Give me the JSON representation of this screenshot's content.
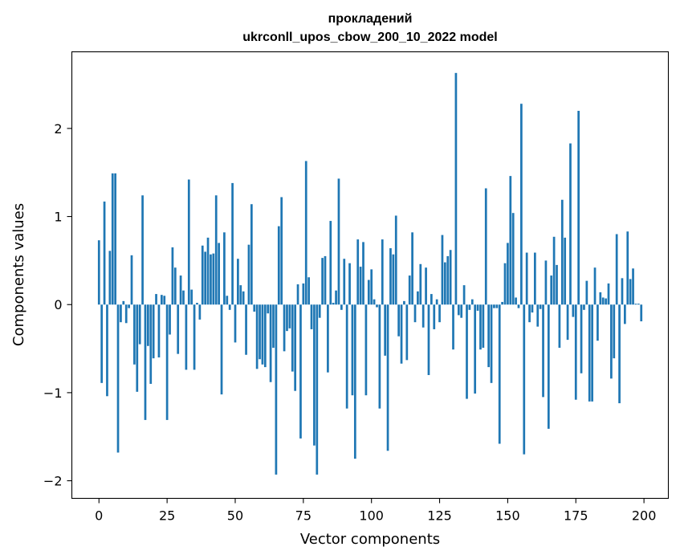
{
  "chart_data": {
    "type": "bar",
    "title": "прокладений",
    "subtitle": "ukrconll_upos_cbow_200_10_2022 model",
    "xlabel": "Vector components",
    "ylabel": "Components values",
    "xlim": [
      -9.95,
      208.95
    ],
    "ylim": [
      -2.2,
      2.87
    ],
    "xticks": [
      0,
      25,
      50,
      75,
      100,
      125,
      150,
      175,
      200
    ],
    "xtick_labels": [
      "0",
      "25",
      "50",
      "75",
      "100",
      "125",
      "150",
      "175",
      "200"
    ],
    "yticks": [
      -2,
      -1,
      0,
      1,
      2
    ],
    "ytick_labels": [
      "−2",
      "−1",
      "0",
      "1",
      "2"
    ],
    "bar_color": "#1f77b4",
    "grid": false,
    "x": [
      0,
      1,
      2,
      3,
      4,
      5,
      6,
      7,
      8,
      9,
      10,
      11,
      12,
      13,
      14,
      15,
      16,
      17,
      18,
      19,
      20,
      21,
      22,
      23,
      24,
      25,
      26,
      27,
      28,
      29,
      30,
      31,
      32,
      33,
      34,
      35,
      36,
      37,
      38,
      39,
      40,
      41,
      42,
      43,
      44,
      45,
      46,
      47,
      48,
      49,
      50,
      51,
      52,
      53,
      54,
      55,
      56,
      57,
      58,
      59,
      60,
      61,
      62,
      63,
      64,
      65,
      66,
      67,
      68,
      69,
      70,
      71,
      72,
      73,
      74,
      75,
      76,
      77,
      78,
      79,
      80,
      81,
      82,
      83,
      84,
      85,
      86,
      87,
      88,
      89,
      90,
      91,
      92,
      93,
      94,
      95,
      96,
      97,
      98,
      99,
      100,
      101,
      102,
      103,
      104,
      105,
      106,
      107,
      108,
      109,
      110,
      111,
      112,
      113,
      114,
      115,
      116,
      117,
      118,
      119,
      120,
      121,
      122,
      123,
      124,
      125,
      126,
      127,
      128,
      129,
      130,
      131,
      132,
      133,
      134,
      135,
      136,
      137,
      138,
      139,
      140,
      141,
      142,
      143,
      144,
      145,
      146,
      147,
      148,
      149,
      150,
      151,
      152,
      153,
      154,
      155,
      156,
      157,
      158,
      159,
      160,
      161,
      162,
      163,
      164,
      165,
      166,
      167,
      168,
      169,
      170,
      171,
      172,
      173,
      174,
      175,
      176,
      177,
      178,
      179,
      180,
      181,
      182,
      183,
      184,
      185,
      186,
      187,
      188,
      189,
      190,
      191,
      192,
      193,
      194,
      195,
      196,
      197,
      198,
      199
    ],
    "values": [
      0.73,
      -0.89,
      1.17,
      -1.04,
      0.61,
      1.49,
      1.49,
      -1.68,
      -0.2,
      0.04,
      -0.21,
      -0.04,
      0.56,
      -0.68,
      -0.99,
      -0.45,
      1.24,
      -1.31,
      -0.47,
      -0.9,
      -0.61,
      0.12,
      -0.6,
      0.11,
      0.1,
      -1.31,
      -0.34,
      0.65,
      0.42,
      -0.56,
      0.33,
      0.16,
      -0.74,
      1.42,
      0.17,
      -0.74,
      0.02,
      -0.17,
      0.67,
      0.6,
      0.76,
      0.57,
      0.58,
      1.24,
      0.7,
      -1.02,
      0.82,
      0.1,
      -0.06,
      1.38,
      -0.43,
      0.52,
      0.22,
      0.15,
      -0.57,
      0.68,
      1.14,
      -0.08,
      -0.73,
      -0.62,
      -0.68,
      -0.71,
      -0.1,
      -0.88,
      -0.49,
      -1.93,
      0.89,
      1.22,
      -0.53,
      -0.3,
      -0.27,
      -0.76,
      -0.98,
      0.23,
      -1.52,
      0.24,
      1.63,
      0.31,
      -0.28,
      -1.6,
      -1.93,
      -0.15,
      0.53,
      0.55,
      -0.77,
      0.95,
      0.02,
      0.16,
      1.43,
      -0.06,
      0.52,
      -1.18,
      0.47,
      -1.03,
      -1.75,
      0.74,
      0.43,
      0.71,
      -1.03,
      0.28,
      0.4,
      0.06,
      -0.03,
      -1.18,
      0.74,
      -0.58,
      -1.66,
      0.64,
      0.57,
      1.01,
      -0.36,
      -0.67,
      0.04,
      -0.63,
      0.33,
      0.82,
      -0.2,
      0.15,
      0.46,
      -0.26,
      0.42,
      -0.8,
      0.12,
      -0.28,
      0.06,
      -0.2,
      0.79,
      0.48,
      0.55,
      0.62,
      -0.51,
      2.63,
      -0.12,
      -0.15,
      0.22,
      -1.07,
      -0.06,
      0.06,
      -1.01,
      -0.07,
      -0.51,
      -0.49,
      1.32,
      -0.71,
      -0.89,
      -0.04,
      -0.04,
      -1.58,
      0.03,
      0.47,
      0.7,
      1.46,
      1.04,
      0.08,
      -0.04,
      2.28,
      -1.7,
      0.59,
      -0.2,
      -0.09,
      0.59,
      -0.25,
      -0.05,
      -1.05,
      0.5,
      -1.41,
      0.33,
      0.77,
      0.45,
      -0.49,
      1.19,
      0.76,
      -0.4,
      1.83,
      -0.14,
      -1.08,
      2.2,
      -0.78,
      -0.06,
      0.27,
      -1.1,
      -1.1,
      0.42,
      -0.41,
      0.14,
      0.08,
      0.07,
      0.24,
      -0.84,
      -0.61,
      0.8,
      -1.12,
      0.3,
      -0.22,
      0.83,
      0.29,
      0.41,
      0.01,
      0.01,
      -0.19
    ]
  }
}
